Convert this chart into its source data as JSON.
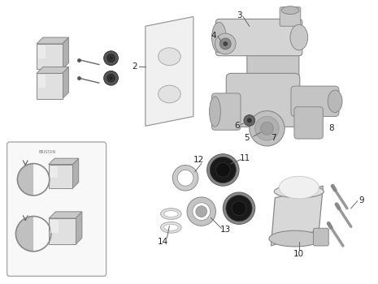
{
  "background_color": "#ffffff",
  "label_color": "#222222",
  "label_fontsize": 7.5,
  "line_color": "#666666",
  "part_gray": "#d0d0d0",
  "part_light": "#e8e8e8",
  "part_dark": "#a0a0a0",
  "dark_fill": "#2a2a2a",
  "outline": "#888888"
}
